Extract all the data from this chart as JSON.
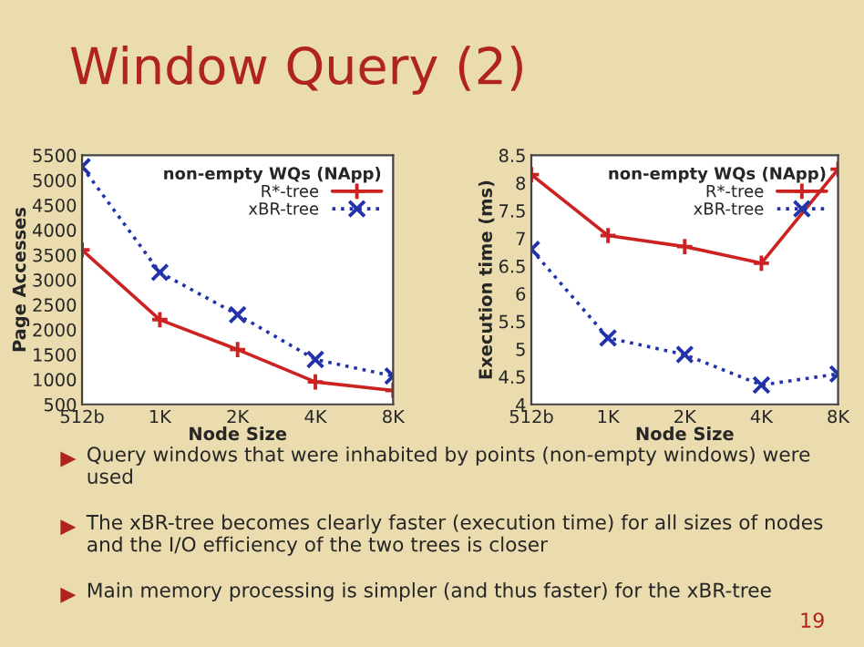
{
  "chart_data": [
    {
      "type": "line",
      "xlabel": "Node Size",
      "ylabel": "Page Accesses",
      "legend_title": "non-empty WQs (NApp)",
      "legend": "top right",
      "grid": false,
      "categories": [
        "512b",
        "1K",
        "2K",
        "4K",
        "8K"
      ],
      "ylim": [
        500,
        5500
      ],
      "yticks": [
        500,
        1000,
        1500,
        2000,
        2500,
        3000,
        3500,
        4000,
        4500,
        5000,
        5500
      ],
      "series": [
        {
          "name": "R*-tree",
          "color": "#cc2222",
          "marker": "plus",
          "line_style": "solid",
          "values": [
            3600,
            2200,
            1600,
            950,
            780
          ]
        },
        {
          "name": "xBR-tree",
          "color": "#2233aa",
          "marker": "cross",
          "line_style": "dotted",
          "values": [
            5270,
            3150,
            2300,
            1400,
            1070
          ]
        }
      ]
    },
    {
      "type": "line",
      "xlabel": "Node Size",
      "ylabel": "Execution time (ms)",
      "legend_title": "non-empty WQs (NApp)",
      "legend": "top right",
      "grid": false,
      "categories": [
        "512b",
        "1K",
        "2K",
        "4K",
        "8K"
      ],
      "ylim": [
        4,
        8.5
      ],
      "yticks": [
        4,
        4.5,
        5,
        5.5,
        6,
        6.5,
        7,
        7.5,
        8,
        8.5
      ],
      "series": [
        {
          "name": "R*-tree",
          "color": "#cc2222",
          "marker": "plus",
          "line_style": "solid",
          "values": [
            8.15,
            7.05,
            6.85,
            6.55,
            8.25
          ]
        },
        {
          "name": "xBR-tree",
          "color": "#2233aa",
          "marker": "cross",
          "line_style": "dotted",
          "values": [
            6.8,
            5.2,
            4.9,
            4.35,
            4.55
          ]
        }
      ]
    },
    {
      "type": "other",
      "title": "Window Query (2)",
      "annotations": [
        "Query windows that were inhabited by points (non-empty windows) were used",
        "The xBR-tree becomes clearly faster (execution time) for all sizes of nodes and the I/O efficiency of the two trees is closer",
        "Main memory processing is simpler (and thus faster) for the xBR-tree",
        "19"
      ]
    }
  ]
}
